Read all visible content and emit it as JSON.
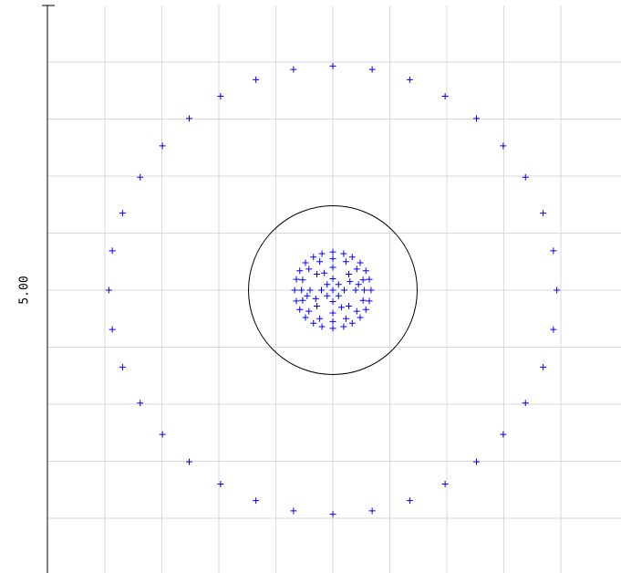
{
  "chart_data": {
    "type": "scatter",
    "title": "",
    "xlabel": "",
    "ylabel": "",
    "grid": true,
    "y_tick_labels": [
      "5.00"
    ],
    "xlim": [
      0,
      10
    ],
    "ylim": [
      0,
      10
    ],
    "marker": "plus",
    "marker_color": "#0000ff",
    "reference_circle": {
      "cx": 5.0,
      "cy": 5.0,
      "r": 1.48
    },
    "series": [
      {
        "points": [
          [
            5.0,
            8.93
          ],
          [
            5.69,
            8.87
          ],
          [
            6.35,
            8.69
          ],
          [
            6.97,
            8.4
          ],
          [
            7.52,
            8.01
          ],
          [
            7.99,
            7.53
          ],
          [
            8.38,
            6.98
          ],
          [
            8.69,
            6.35
          ],
          [
            8.87,
            5.69
          ],
          [
            8.93,
            5.0
          ],
          [
            8.87,
            4.31
          ],
          [
            8.69,
            3.65
          ],
          [
            8.38,
            3.02
          ],
          [
            7.99,
            2.47
          ],
          [
            7.52,
            1.99
          ],
          [
            6.97,
            1.6
          ],
          [
            6.35,
            1.31
          ],
          [
            5.69,
            1.13
          ],
          [
            5.0,
            1.07
          ],
          [
            4.31,
            1.13
          ],
          [
            3.65,
            1.31
          ],
          [
            3.03,
            1.6
          ],
          [
            2.48,
            1.99
          ],
          [
            2.01,
            2.47
          ],
          [
            1.62,
            3.02
          ],
          [
            1.31,
            3.65
          ],
          [
            1.13,
            4.31
          ],
          [
            1.07,
            5.0
          ],
          [
            1.13,
            5.69
          ],
          [
            1.31,
            6.35
          ],
          [
            1.62,
            6.98
          ],
          [
            2.01,
            7.53
          ],
          [
            2.48,
            8.01
          ],
          [
            3.03,
            8.4
          ],
          [
            3.65,
            8.69
          ],
          [
            4.31,
            8.87
          ],
          [
            5.0,
            5.67
          ],
          [
            5.19,
            5.64
          ],
          [
            5.34,
            5.58
          ],
          [
            5.48,
            5.48
          ],
          [
            5.58,
            5.34
          ],
          [
            5.64,
            5.19
          ],
          [
            5.67,
            5.0
          ],
          [
            5.64,
            4.81
          ],
          [
            5.58,
            4.66
          ],
          [
            5.48,
            4.52
          ],
          [
            5.34,
            4.42
          ],
          [
            5.19,
            4.36
          ],
          [
            5.0,
            4.33
          ],
          [
            4.81,
            4.36
          ],
          [
            4.66,
            4.42
          ],
          [
            4.52,
            4.52
          ],
          [
            4.42,
            4.66
          ],
          [
            4.36,
            4.81
          ],
          [
            4.33,
            5.0
          ],
          [
            4.36,
            5.19
          ],
          [
            4.42,
            5.34
          ],
          [
            4.52,
            5.48
          ],
          [
            4.66,
            5.58
          ],
          [
            4.81,
            5.64
          ],
          [
            5.0,
            5.55
          ],
          [
            5.23,
            5.5
          ],
          [
            5.42,
            5.37
          ],
          [
            5.53,
            5.18
          ],
          [
            5.55,
            5.0
          ],
          [
            5.53,
            4.82
          ],
          [
            5.42,
            4.63
          ],
          [
            5.23,
            4.5
          ],
          [
            5.0,
            4.45
          ],
          [
            4.77,
            4.5
          ],
          [
            4.58,
            4.63
          ],
          [
            4.47,
            4.82
          ],
          [
            4.45,
            5.0
          ],
          [
            4.47,
            5.18
          ],
          [
            4.58,
            5.37
          ],
          [
            4.77,
            5.5
          ],
          [
            5.0,
            5.4
          ],
          [
            5.28,
            5.28
          ],
          [
            5.4,
            5.0
          ],
          [
            5.28,
            4.72
          ],
          [
            5.0,
            4.6
          ],
          [
            4.72,
            4.72
          ],
          [
            4.6,
            5.0
          ],
          [
            4.72,
            5.28
          ],
          [
            5.0,
            5.2
          ],
          [
            5.2,
            5.0
          ],
          [
            5.0,
            4.8
          ],
          [
            4.8,
            5.0
          ],
          [
            5.0,
            5.0
          ],
          [
            5.1,
            5.1
          ],
          [
            4.9,
            4.9
          ],
          [
            5.1,
            4.9
          ],
          [
            4.9,
            5.1
          ],
          [
            5.3,
            5.15
          ],
          [
            4.7,
            4.85
          ],
          [
            5.15,
            4.7
          ],
          [
            4.85,
            5.3
          ],
          [
            5.45,
            5.1
          ],
          [
            4.55,
            4.9
          ]
        ]
      }
    ]
  }
}
